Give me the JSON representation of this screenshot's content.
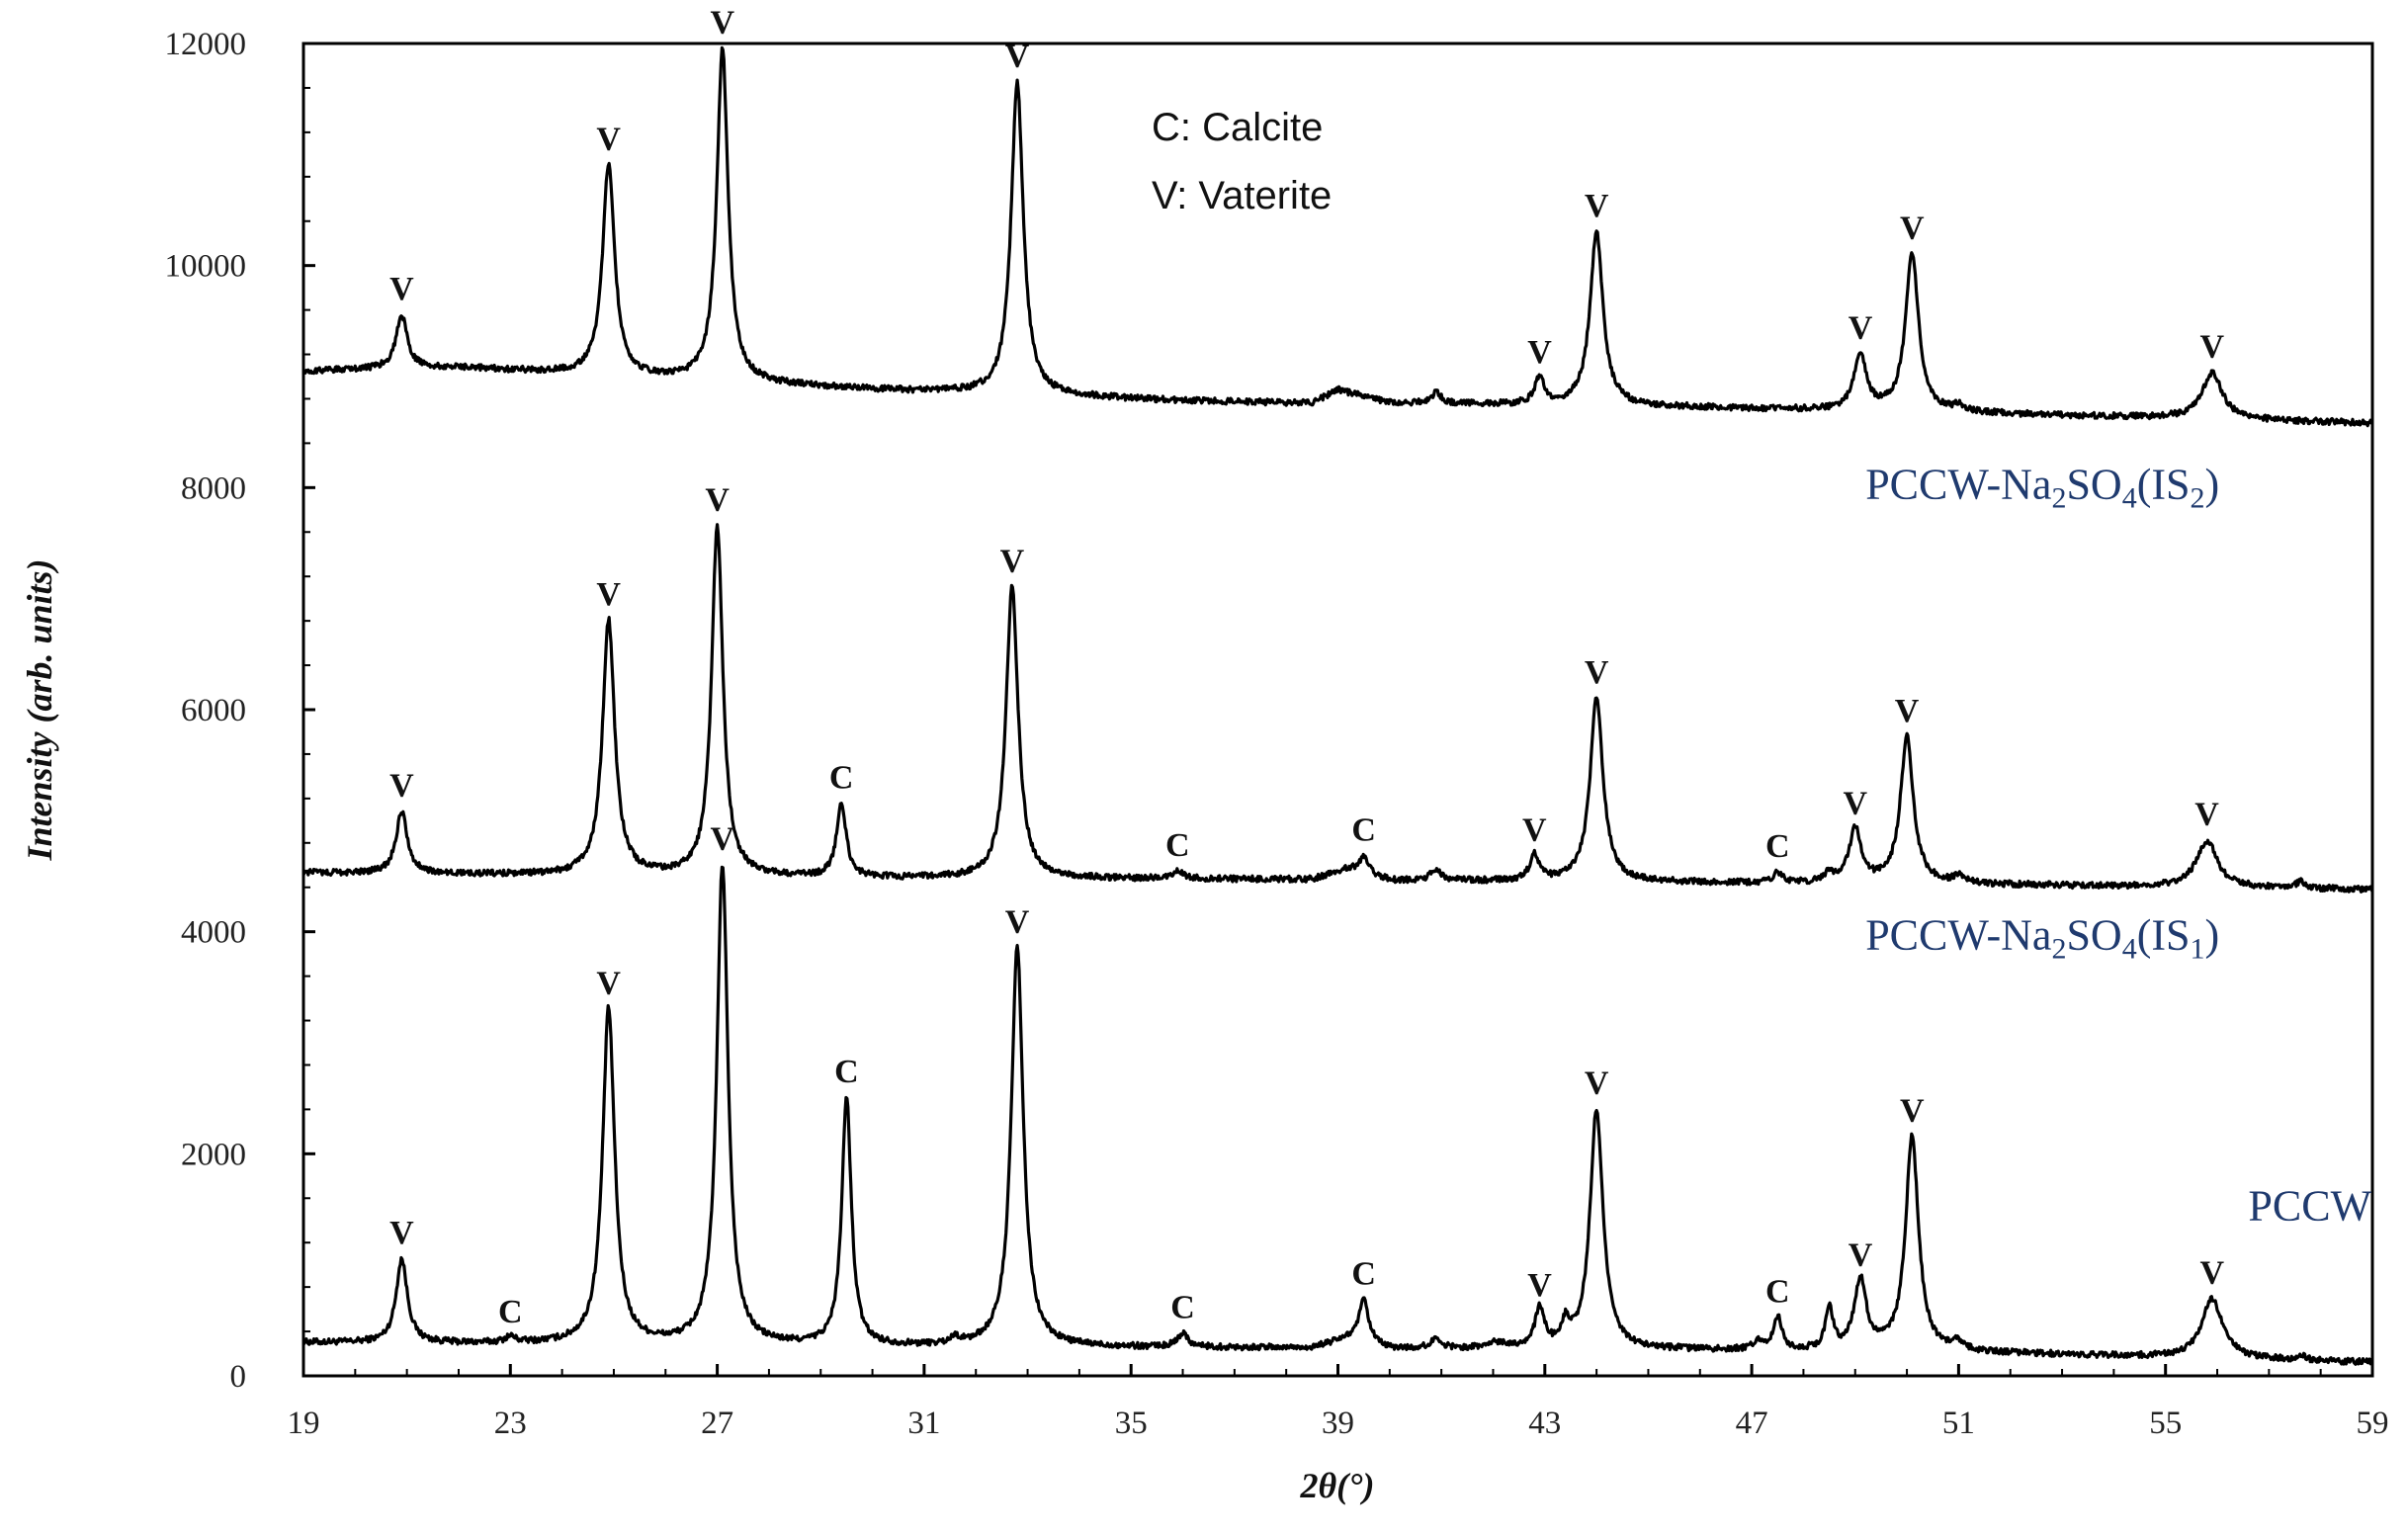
{
  "chart_data": {
    "type": "line",
    "title": "",
    "xlabel": "2θ(°)",
    "ylabel": "Intensity (arb. units)",
    "xlim": [
      19,
      59
    ],
    "ylim": [
      0,
      12000
    ],
    "x_ticks": [
      19,
      23,
      27,
      31,
      35,
      39,
      43,
      47,
      51,
      55,
      59
    ],
    "y_ticks": [
      0,
      2000,
      4000,
      6000,
      8000,
      10000,
      12000
    ],
    "grid": false,
    "legend": {
      "placement": "top-center",
      "entries": [
        "C: Calcite",
        "V: Vaterite"
      ]
    },
    "series": [
      {
        "name": "PCCW",
        "label_parts": [
          "PCCW"
        ],
        "label_at": [
          56.6,
          1400
        ],
        "baseline": [
          [
            19,
            300
          ],
          [
            30,
            260
          ],
          [
            38.5,
            250
          ],
          [
            39.2,
            330
          ],
          [
            40,
            240
          ],
          [
            46,
            230
          ],
          [
            52,
            200
          ],
          [
            59,
            120
          ]
        ],
        "peaks": [
          {
            "x": 20.9,
            "y": 1050,
            "w": 0.13,
            "label": "V"
          },
          {
            "x": 23.0,
            "y": 340,
            "w": 0.12,
            "label": "C"
          },
          {
            "x": 24.9,
            "y": 3300,
            "w": 0.14,
            "label": "V"
          },
          {
            "x": 27.1,
            "y": 4600,
            "w": 0.13,
            "label": "V"
          },
          {
            "x": 29.5,
            "y": 2500,
            "w": 0.11,
            "label": "C"
          },
          {
            "x": 31.6,
            "y": 320,
            "w": 0.1,
            "label": ""
          },
          {
            "x": 32.8,
            "y": 3850,
            "w": 0.14,
            "label": "V"
          },
          {
            "x": 36.0,
            "y": 380,
            "w": 0.12,
            "label": "C"
          },
          {
            "x": 39.5,
            "y": 680,
            "w": 0.11,
            "label": "C"
          },
          {
            "x": 40.9,
            "y": 330,
            "w": 0.12,
            "label": ""
          },
          {
            "x": 42.1,
            "y": 290,
            "w": 0.25,
            "label": ""
          },
          {
            "x": 42.9,
            "y": 580,
            "w": 0.11,
            "label": "V"
          },
          {
            "x": 43.4,
            "y": 430,
            "w": 0.09,
            "label": ""
          },
          {
            "x": 44.0,
            "y": 2400,
            "w": 0.15,
            "label": "V"
          },
          {
            "x": 47.1,
            "y": 300,
            "w": 0.09,
            "label": ""
          },
          {
            "x": 47.5,
            "y": 520,
            "w": 0.1,
            "label": "C"
          },
          {
            "x": 48.5,
            "y": 580,
            "w": 0.09,
            "label": ""
          },
          {
            "x": 49.1,
            "y": 850,
            "w": 0.14,
            "label": "V"
          },
          {
            "x": 50.1,
            "y": 2150,
            "w": 0.15,
            "label": "V"
          },
          {
            "x": 51.0,
            "y": 280,
            "w": 0.12,
            "label": ""
          },
          {
            "x": 55.9,
            "y": 690,
            "w": 0.24,
            "label": "V"
          },
          {
            "x": 57.6,
            "y": 190,
            "w": 0.08,
            "label": ""
          }
        ]
      },
      {
        "name": "PCCW-Na2SO4(IS1)",
        "label_parts": [
          "PCCW-Na",
          "2",
          "SO",
          "4",
          "(IS",
          "1",
          ")"
        ],
        "label_at": [
          49.2,
          3840
        ],
        "baseline": [
          [
            19,
            4530
          ],
          [
            30,
            4480
          ],
          [
            38.5,
            4470
          ],
          [
            39.2,
            4560
          ],
          [
            40,
            4460
          ],
          [
            46,
            4440
          ],
          [
            52,
            4420
          ],
          [
            59,
            4380
          ]
        ],
        "peaks": [
          {
            "x": 20.9,
            "y": 5080,
            "w": 0.13,
            "label": "V"
          },
          {
            "x": 24.9,
            "y": 6800,
            "w": 0.14,
            "label": "V"
          },
          {
            "x": 27.0,
            "y": 7650,
            "w": 0.13,
            "label": "V"
          },
          {
            "x": 29.4,
            "y": 5150,
            "w": 0.11,
            "label": "C"
          },
          {
            "x": 32.7,
            "y": 7100,
            "w": 0.14,
            "label": "V"
          },
          {
            "x": 35.9,
            "y": 4540,
            "w": 0.12,
            "label": "C"
          },
          {
            "x": 39.5,
            "y": 4680,
            "w": 0.11,
            "label": "C"
          },
          {
            "x": 40.9,
            "y": 4560,
            "w": 0.12,
            "label": ""
          },
          {
            "x": 42.8,
            "y": 4680,
            "w": 0.11,
            "label": "V"
          },
          {
            "x": 44.0,
            "y": 6100,
            "w": 0.15,
            "label": "V"
          },
          {
            "x": 47.5,
            "y": 4530,
            "w": 0.1,
            "label": "C"
          },
          {
            "x": 48.5,
            "y": 4520,
            "w": 0.09,
            "label": ""
          },
          {
            "x": 49.0,
            "y": 4920,
            "w": 0.14,
            "label": "V"
          },
          {
            "x": 50.0,
            "y": 5750,
            "w": 0.15,
            "label": "V"
          },
          {
            "x": 51.0,
            "y": 4490,
            "w": 0.12,
            "label": ""
          },
          {
            "x": 55.8,
            "y": 4820,
            "w": 0.24,
            "label": "V"
          },
          {
            "x": 57.6,
            "y": 4450,
            "w": 0.08,
            "label": ""
          }
        ]
      },
      {
        "name": "PCCW-Na2SO4(IS2)",
        "label_parts": [
          "PCCW-Na",
          "2",
          "SO",
          "4",
          "(IS",
          "2",
          ")"
        ],
        "label_at": [
          49.2,
          7900
        ],
        "baseline": [
          [
            19,
            9050
          ],
          [
            22,
            9080
          ],
          [
            25,
            9000
          ],
          [
            30,
            8880
          ],
          [
            36,
            8780
          ],
          [
            38.5,
            8760
          ],
          [
            39.0,
            8880
          ],
          [
            40,
            8760
          ],
          [
            46,
            8720
          ],
          [
            52,
            8660
          ],
          [
            59,
            8580
          ]
        ],
        "peaks": [
          {
            "x": 20.9,
            "y": 9550,
            "w": 0.13,
            "label": "V"
          },
          {
            "x": 24.9,
            "y": 10900,
            "w": 0.14,
            "label": "V"
          },
          {
            "x": 27.1,
            "y": 11950,
            "w": 0.13,
            "label": "V"
          },
          {
            "x": 32.8,
            "y": 11650,
            "w": 0.14,
            "label": "V"
          },
          {
            "x": 40.9,
            "y": 8850,
            "w": 0.12,
            "label": ""
          },
          {
            "x": 42.9,
            "y": 8980,
            "w": 0.11,
            "label": "V"
          },
          {
            "x": 44.0,
            "y": 10300,
            "w": 0.15,
            "label": "V"
          },
          {
            "x": 49.1,
            "y": 9200,
            "w": 0.14,
            "label": "V"
          },
          {
            "x": 50.1,
            "y": 10100,
            "w": 0.15,
            "label": "V"
          },
          {
            "x": 51.0,
            "y": 8720,
            "w": 0.12,
            "label": ""
          },
          {
            "x": 55.9,
            "y": 9030,
            "w": 0.24,
            "label": "V"
          }
        ]
      }
    ]
  }
}
